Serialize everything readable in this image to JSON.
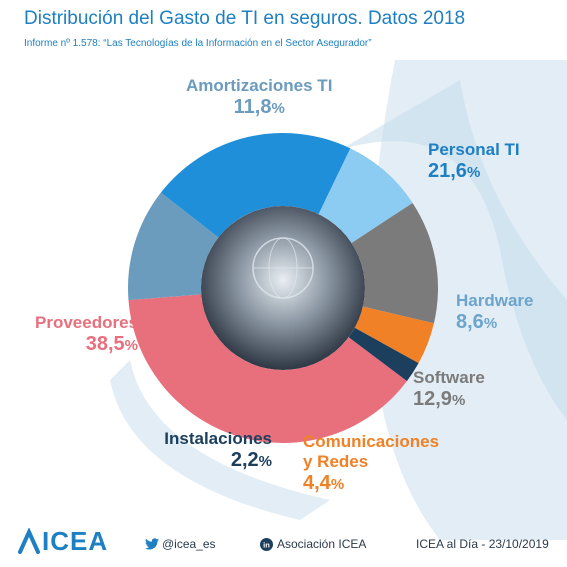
{
  "header": {
    "title": "Distribución del Gasto de TI en seguros. Datos 2018",
    "subtitle": "Informe nº 1.578: “Las Tecnologías de la Información en el Sector Asegurador”"
  },
  "chart_data": {
    "type": "pie",
    "title": "Distribución del Gasto de TI en seguros. Datos 2018",
    "categories": [
      "Personal TI",
      "Hardware",
      "Software",
      "Comunicaciones y Redes",
      "Instalaciones",
      "Proveedores",
      "Amortizaciones TI"
    ],
    "values": [
      21.6,
      8.6,
      12.9,
      4.4,
      2.2,
      38.5,
      11.8
    ],
    "labels": [
      "21,6",
      "8,6",
      "12,9",
      "4,4",
      "2,2",
      "38,5",
      "11,8"
    ],
    "unit": "%",
    "colors": [
      "#1f8fd9",
      "#8ccbf2",
      "#7b7b7b",
      "#f08127",
      "#1c3f5e",
      "#e8707c",
      "#6b9bbd"
    ],
    "legend": "none"
  },
  "slices": {
    "personal": {
      "name": "Personal TI",
      "value": "21,6",
      "pct": "%"
    },
    "hardware": {
      "name": "Hardware",
      "value": "8,6",
      "pct": "%"
    },
    "software": {
      "name": "Software",
      "value": "12,9",
      "pct": "%"
    },
    "comunicaciones": {
      "name1": "Comunicaciones",
      "name2": "y Redes",
      "value": "4,4",
      "pct": "%"
    },
    "instalaciones": {
      "name": "Instalaciones",
      "value": "2,2",
      "pct": "%"
    },
    "proveedores": {
      "name": "Proveedores",
      "value": "38,5",
      "pct": "%"
    },
    "amortizaciones": {
      "name": "Amortizaciones TI",
      "value": "11,8",
      "pct": "%"
    }
  },
  "footer": {
    "logo": "ICEA",
    "twitter": "@icea_es",
    "linkedin": "Asociación ICEA",
    "date": "ICEA al Día - 23/10/2019"
  }
}
